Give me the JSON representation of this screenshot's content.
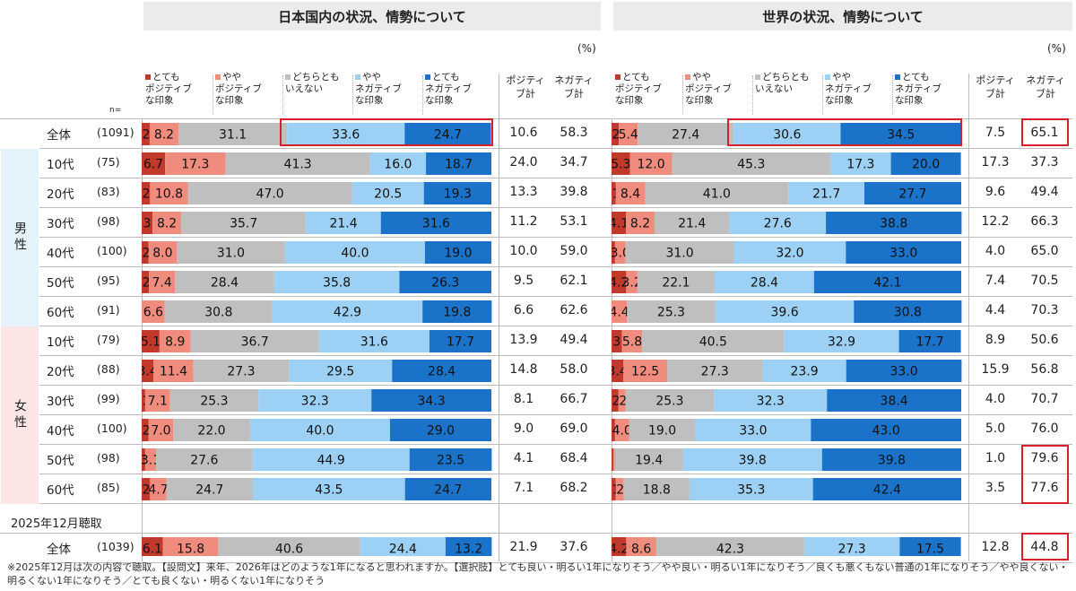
{
  "panels": [
    {
      "title": "日本国内の状況、情勢について",
      "unit": "(%)"
    },
    {
      "title": "世界の状況、情勢について",
      "unit": "(%)"
    }
  ],
  "legend": [
    {
      "label": "とても\nポジティブ\nな印象",
      "color": "#c0392b"
    },
    {
      "label": "やや\nポジティブ\nな印象",
      "color": "#f08c7d"
    },
    {
      "label": "どちらとも\nいえない",
      "color": "#bfbfbf"
    },
    {
      "label": "やや\nネガティブ\nな印象",
      "color": "#9dd0f5"
    },
    {
      "label": "とても\nネガティブ\nな印象",
      "color": "#1a73c9"
    }
  ],
  "summary_headers": {
    "positive": "ポジティ\nブ計",
    "negative": "ネガティ\nブ計"
  },
  "n_label": "n=",
  "groups": {
    "male": "男性",
    "female": "女性"
  },
  "section2_label": "2025年12月聴取",
  "footnote": "※2025年12月は次の内容で聴取。【設問文】来年、2026年はどのような1年になると思われますか。【選択肢】とても良い・明るい1年になりそう／やや良い・明るい1年になりそう／良くも悪くもない普通の1年になりそう／やや良くない・明るくない1年になりそう／とても良くない・明るくない1年になりそう",
  "rows": [
    {
      "label": "全体",
      "n": "(1091)"
    },
    {
      "label": "10代",
      "n": "(75)"
    },
    {
      "label": "20代",
      "n": "(83)"
    },
    {
      "label": "30代",
      "n": "(98)"
    },
    {
      "label": "40代",
      "n": "(100)"
    },
    {
      "label": "50代",
      "n": "(95)"
    },
    {
      "label": "60代",
      "n": "(91)"
    },
    {
      "label": "10代",
      "n": "(79)"
    },
    {
      "label": "20代",
      "n": "(88)"
    },
    {
      "label": "30代",
      "n": "(99)"
    },
    {
      "label": "40代",
      "n": "(100)"
    },
    {
      "label": "50代",
      "n": "(98)"
    },
    {
      "label": "60代",
      "n": "(85)"
    },
    {
      "label": "全体",
      "n": "(1039)"
    }
  ],
  "chart_data": [
    {
      "type": "bar",
      "stacked": true,
      "orientation": "horizontal",
      "title": "日本国内の状況、情勢について",
      "categories": [
        "全体",
        "男性10代",
        "男性20代",
        "男性30代",
        "男性40代",
        "男性50代",
        "男性60代",
        "女性10代",
        "女性20代",
        "女性30代",
        "女性40代",
        "女性50代",
        "女性60代",
        "2025年12月聴取 全体"
      ],
      "series": [
        {
          "name": "とてもポジティブな印象",
          "values": [
            2.3,
            6.7,
            2.4,
            3.1,
            2.0,
            2.1,
            0,
            5.1,
            3.4,
            1.0,
            2.0,
            1.0,
            2.4,
            6.1
          ],
          "labels": [
            "2",
            "6.7",
            "2",
            "3",
            "2",
            "2",
            "",
            "5.1",
            "3.4",
            "1",
            "2",
            "1",
            "2",
            "6.1"
          ]
        },
        {
          "name": "ややポジティブな印象",
          "values": [
            8.2,
            17.3,
            10.8,
            8.2,
            8.0,
            7.4,
            6.6,
            8.9,
            11.4,
            7.1,
            7.0,
            3.1,
            4.7,
            15.8
          ],
          "labels": [
            "8.2",
            "17.3",
            "10.8",
            "8.2",
            "8.0",
            "7.4",
            "6.6",
            "8.9",
            "11.4",
            "7.1",
            "7.0",
            "3.1",
            "4.7",
            "15.8"
          ]
        },
        {
          "name": "どちらともいえない",
          "values": [
            31.1,
            41.3,
            47.0,
            35.7,
            31.0,
            28.4,
            30.8,
            36.7,
            27.3,
            25.3,
            22.0,
            27.6,
            24.7,
            40.6
          ]
        },
        {
          "name": "ややネガティブな印象",
          "values": [
            33.6,
            16.0,
            20.5,
            21.4,
            40.0,
            35.8,
            42.9,
            31.6,
            29.5,
            32.3,
            40.0,
            44.9,
            43.5,
            24.4
          ]
        },
        {
          "name": "とてもネガティブな印象",
          "values": [
            24.7,
            18.7,
            19.3,
            31.6,
            19.0,
            26.3,
            19.8,
            17.7,
            28.4,
            34.3,
            29.0,
            23.5,
            24.7,
            13.2
          ]
        }
      ],
      "positive_total": [
        10.6,
        24.0,
        13.3,
        11.2,
        10.0,
        9.5,
        6.6,
        13.9,
        14.8,
        8.1,
        9.0,
        4.1,
        7.1,
        21.9
      ],
      "negative_total": [
        58.3,
        34.7,
        39.8,
        53.1,
        59.0,
        62.1,
        62.6,
        49.4,
        58.0,
        66.7,
        69.0,
        68.4,
        68.2,
        37.6
      ],
      "xlim": [
        0,
        100
      ]
    },
    {
      "type": "bar",
      "stacked": true,
      "orientation": "horizontal",
      "title": "世界の状況、情勢について",
      "categories": [
        "全体",
        "男性10代",
        "男性20代",
        "男性30代",
        "男性40代",
        "男性50代",
        "男性60代",
        "女性10代",
        "女性20代",
        "女性30代",
        "女性40代",
        "女性50代",
        "女性60代",
        "2025年12月聴取 全体"
      ],
      "series": [
        {
          "name": "とてもポジティブな印象",
          "values": [
            2.1,
            5.3,
            1.2,
            4.1,
            1.0,
            4.2,
            0,
            3.0,
            3.4,
            2.0,
            1.0,
            0.5,
            1.2,
            4.2
          ],
          "labels": [
            "2",
            "5.3",
            "1",
            "4.1",
            "",
            "4.2",
            "",
            "3",
            "3.4",
            "2",
            "",
            "",
            "1",
            "4.2"
          ]
        },
        {
          "name": "ややポジティブな印象",
          "values": [
            5.4,
            12.0,
            8.4,
            8.2,
            3.0,
            3.2,
            4.4,
            5.8,
            12.5,
            2.0,
            4.0,
            0.5,
            2.3,
            8.6
          ],
          "labels": [
            "5.4",
            "12.0",
            "8.4",
            "8.2",
            "3.0",
            "3.2",
            "4.4",
            "5.8",
            "12.5",
            "2",
            "4.0",
            "1",
            "2",
            "8.6"
          ]
        },
        {
          "name": "どちらともいえない",
          "values": [
            27.4,
            45.3,
            41.0,
            21.4,
            31.0,
            22.1,
            25.3,
            40.5,
            27.3,
            25.3,
            19.0,
            19.4,
            18.8,
            42.3
          ]
        },
        {
          "name": "ややネガティブな印象",
          "values": [
            30.6,
            17.3,
            21.7,
            27.6,
            32.0,
            28.4,
            39.6,
            32.9,
            23.9,
            32.3,
            33.0,
            39.8,
            35.3,
            27.3
          ]
        },
        {
          "name": "とてもネガティブな印象",
          "values": [
            34.5,
            20.0,
            27.7,
            38.8,
            33.0,
            42.1,
            30.8,
            17.7,
            33.0,
            38.4,
            43.0,
            39.8,
            42.4,
            17.5
          ]
        }
      ],
      "positive_total": [
        7.5,
        17.3,
        9.6,
        12.2,
        4.0,
        7.4,
        4.4,
        8.9,
        15.9,
        4.0,
        5.0,
        1.0,
        3.5,
        12.8
      ],
      "negative_total": [
        65.1,
        37.3,
        49.4,
        66.3,
        65.0,
        70.5,
        70.3,
        50.6,
        56.8,
        70.7,
        76.0,
        79.6,
        77.6,
        44.8
      ],
      "xlim": [
        0,
        100
      ]
    }
  ]
}
